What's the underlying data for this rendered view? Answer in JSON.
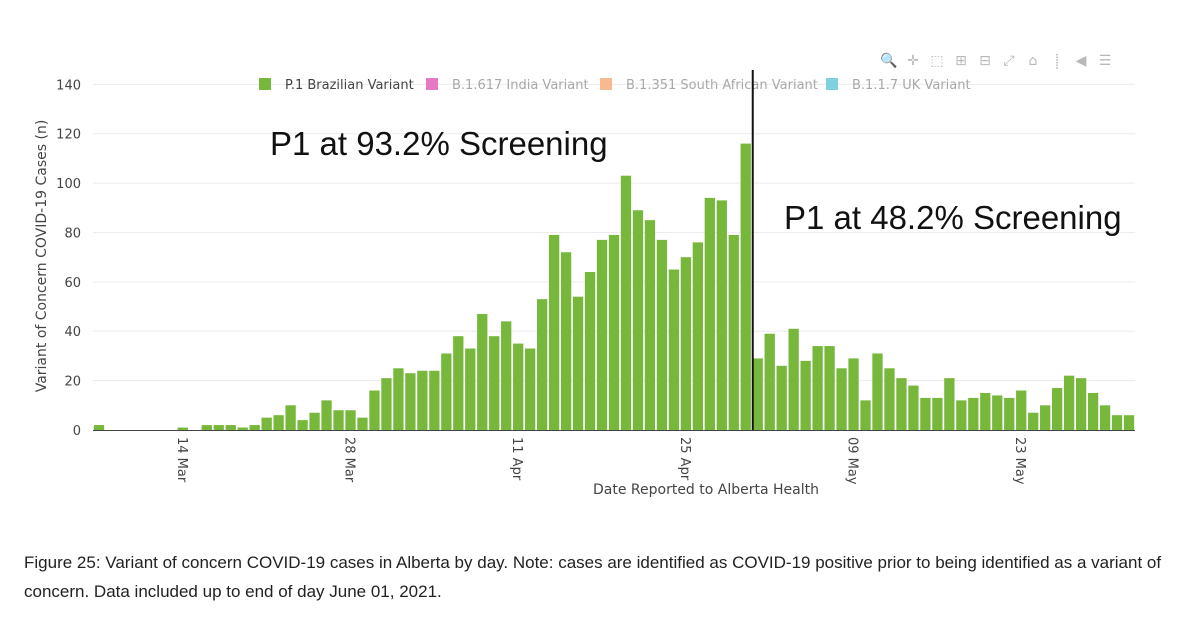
{
  "chart_data": {
    "type": "bar",
    "xlabel": "Date Reported to Alberta Health",
    "ylabel": "Variant of Concern COVID-19 Cases (n)",
    "ylim": [
      0,
      145
    ],
    "y_ticks": [
      0,
      20,
      40,
      60,
      80,
      100,
      120,
      140
    ],
    "x_tick_labels": [
      "14 Mar",
      "28 Mar",
      "11 Apr",
      "25 Apr",
      "09 May",
      "23 May"
    ],
    "x_tick_day_index": [
      7,
      21,
      35,
      49,
      63,
      77
    ],
    "series": [
      {
        "name": "P.1 Brazilian Variant",
        "color": "#77b83c",
        "visible": true,
        "values": [
          2,
          0,
          0,
          0,
          0,
          0,
          0,
          1,
          0,
          2,
          2,
          2,
          1,
          2,
          5,
          6,
          10,
          4,
          7,
          12,
          8,
          8,
          5,
          16,
          21,
          25,
          23,
          24,
          24,
          31,
          38,
          33,
          47,
          38,
          44,
          35,
          33,
          53,
          79,
          72,
          54,
          64,
          77,
          79,
          103,
          89,
          85,
          77,
          65,
          70,
          76,
          94,
          93,
          79,
          116,
          29,
          39,
          26,
          41,
          28,
          34,
          34,
          25,
          29,
          12,
          31,
          25,
          21,
          18,
          13,
          13,
          21,
          12,
          13,
          15,
          14,
          13,
          16,
          7,
          10,
          17,
          22,
          21,
          15,
          10,
          6,
          6
        ]
      },
      {
        "name": "B.1.617 India Variant",
        "color": "#e67ac2",
        "visible": false
      },
      {
        "name": "B.1.351 South African Variant",
        "color": "#f7b98f",
        "visible": false
      },
      {
        "name": "B.1.1.7 UK Variant",
        "color": "#7fd1e2",
        "visible": false
      }
    ],
    "annotations": [
      {
        "text": "P1 at 93.2% Screening"
      },
      {
        "text": "P1 at 48.2% Screening"
      }
    ],
    "divider_after_day_index": 54
  },
  "caption": "Figure 25: Variant of concern COVID-19 cases in Alberta by day. Note: cases are identified as COVID-19 positive prior to being identified as a variant of concern. Data included up to end of day June 01, 2021.",
  "modebar": {
    "icons": [
      {
        "name": "zoom-icon",
        "glyph": "🔍"
      },
      {
        "name": "pan-icon",
        "glyph": "✛"
      },
      {
        "name": "box-select-icon",
        "glyph": "⬚"
      },
      {
        "name": "zoom-in-icon",
        "glyph": "⊞"
      },
      {
        "name": "zoom-out-icon",
        "glyph": "⊟"
      },
      {
        "name": "autoscale-icon",
        "glyph": "⤢"
      },
      {
        "name": "reset-axes-icon",
        "glyph": "⌂"
      },
      {
        "name": "spike-lines-icon",
        "glyph": "⸽"
      },
      {
        "name": "hover-closest-icon",
        "glyph": "◀"
      },
      {
        "name": "hover-compare-icon",
        "glyph": "☰"
      }
    ]
  }
}
